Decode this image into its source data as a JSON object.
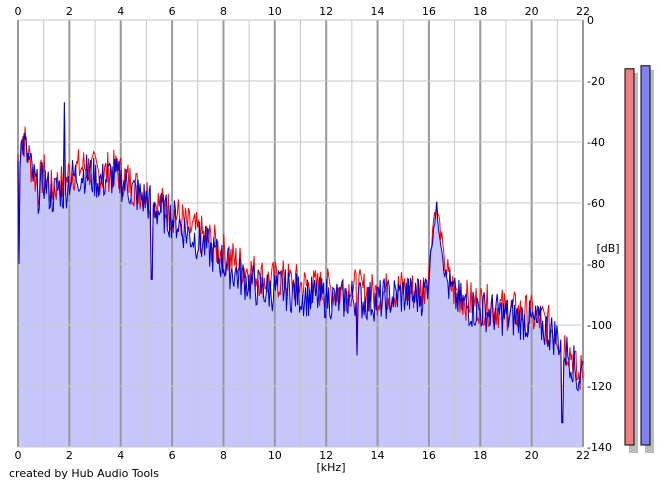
{
  "credit": "created by Hub Audio Tools",
  "chart_data": {
    "type": "line",
    "xlabel": "[kHz]",
    "ylabel": "[dB]",
    "xlim": [
      0,
      22
    ],
    "ylim": [
      -140,
      0
    ],
    "x_ticks": [
      0,
      2,
      4,
      6,
      8,
      10,
      12,
      14,
      16,
      18,
      20,
      22
    ],
    "y_ticks": [
      0,
      -20,
      -40,
      -60,
      -80,
      -100,
      -120,
      -140
    ],
    "grid": true,
    "x_axis_position": "top and bottom",
    "y_axis_position": "right",
    "fill_under_blue": true,
    "colors": {
      "red": "#ff0000",
      "blue": "#0000cc",
      "fill": "#c6c6fb",
      "grid_major": "#999999",
      "grid_minor": "#c8c8c8",
      "meter_red": "#f08080",
      "meter_blue": "#8080f0",
      "meter_shadow": "#bbbbbb"
    },
    "series": [
      {
        "color": "red",
        "x": [
          0.0,
          0.2,
          0.5,
          0.8,
          1.0,
          1.3,
          1.6,
          1.8,
          2.0,
          2.3,
          2.6,
          3.0,
          3.3,
          3.6,
          3.9,
          4.2,
          4.6,
          5.0,
          5.4,
          5.8,
          6.2,
          6.6,
          7.0,
          7.4,
          7.8,
          8.2,
          8.6,
          9.0,
          9.4,
          9.8,
          10.2,
          10.6,
          11.0,
          11.5,
          12.0,
          12.5,
          13.0,
          13.5,
          14.0,
          14.5,
          15.0,
          15.4,
          15.8,
          16.0,
          16.1,
          16.2,
          16.3,
          16.4,
          16.5,
          16.6,
          16.8,
          17.0,
          17.5,
          18.0,
          18.5,
          19.0,
          19.5,
          20.0,
          20.5,
          21.0,
          21.3,
          21.6,
          21.8,
          22.0
        ],
        "y": [
          -44,
          -38,
          -47,
          -55,
          -50,
          -56,
          -53,
          -55,
          -50,
          -49,
          -48,
          -50,
          -51,
          -49,
          -50,
          -52,
          -55,
          -57,
          -60,
          -62,
          -64,
          -68,
          -70,
          -72,
          -75,
          -78,
          -80,
          -82,
          -84,
          -86,
          -85,
          -86,
          -87,
          -88,
          -88,
          -89,
          -88,
          -89,
          -90,
          -89,
          -88,
          -89,
          -88,
          -82,
          -72,
          -64,
          -61,
          -66,
          -72,
          -80,
          -86,
          -89,
          -92,
          -93,
          -94,
          -95,
          -96,
          -97,
          -99,
          -103,
          -106,
          -110,
          -118,
          -114
        ]
      },
      {
        "color": "blue",
        "x": [
          0.0,
          0.2,
          0.5,
          0.8,
          1.0,
          1.3,
          1.6,
          1.8,
          2.0,
          2.3,
          2.6,
          3.0,
          3.3,
          3.6,
          3.9,
          4.2,
          4.6,
          5.0,
          5.4,
          5.8,
          6.2,
          6.6,
          7.0,
          7.4,
          7.8,
          8.2,
          8.6,
          9.0,
          9.4,
          9.8,
          10.2,
          10.6,
          11.0,
          11.5,
          12.0,
          12.5,
          13.0,
          13.5,
          14.0,
          14.5,
          15.0,
          15.4,
          15.8,
          16.0,
          16.1,
          16.2,
          16.3,
          16.4,
          16.5,
          16.6,
          16.8,
          17.0,
          17.5,
          18.0,
          18.5,
          19.0,
          19.5,
          20.0,
          20.5,
          21.0,
          21.3,
          21.6,
          21.8,
          22.0
        ],
        "y": [
          -46,
          -40,
          -49,
          -57,
          -52,
          -58,
          -55,
          -57,
          -52,
          -51,
          -50,
          -52,
          -53,
          -51,
          -52,
          -54,
          -57,
          -59,
          -62,
          -64,
          -66,
          -70,
          -72,
          -75,
          -78,
          -81,
          -84,
          -86,
          -88,
          -89,
          -88,
          -89,
          -90,
          -91,
          -91,
          -92,
          -91,
          -92,
          -92,
          -91,
          -90,
          -91,
          -90,
          -84,
          -74,
          -66,
          -62,
          -68,
          -74,
          -82,
          -88,
          -91,
          -94,
          -95,
          -96,
          -97,
          -98,
          -99,
          -101,
          -104,
          -108,
          -112,
          -118,
          -114
        ]
      }
    ],
    "spikes": [
      {
        "x": 0.05,
        "y": -80
      },
      {
        "x": 1.8,
        "y": -27
      },
      {
        "x": 5.2,
        "y": -85
      },
      {
        "x": 13.2,
        "y": -110
      },
      {
        "x": 21.2,
        "y": -132
      }
    ],
    "level_meters": [
      {
        "color": "red",
        "top_db": -16
      },
      {
        "color": "blue",
        "top_db": -15
      }
    ]
  }
}
